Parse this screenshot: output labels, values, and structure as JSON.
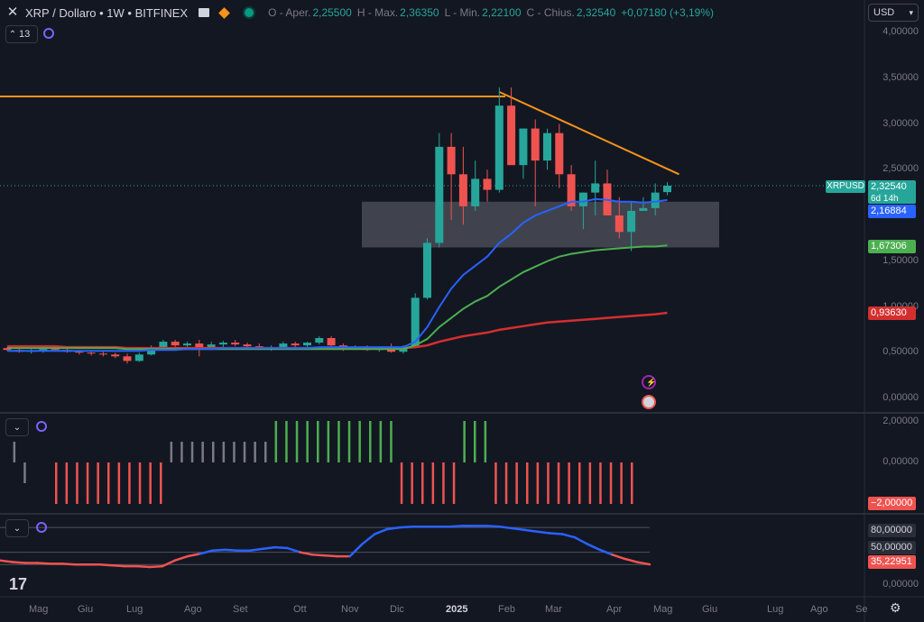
{
  "header": {
    "symbol": "XRP / Dollaro • 1W • BITFINEX",
    "open_label": "O - Aper.",
    "open_value": "2,25500",
    "high_label": "H - Max.",
    "high_value": "2,36350",
    "low_label": "L - Min.",
    "low_value": "2,22100",
    "close_label": "C - Chius.",
    "close_value": "2,32540",
    "change": "+0,07180 (+3,19%)"
  },
  "indicators_pill": {
    "count": "13"
  },
  "currency_selector": {
    "value": "USD"
  },
  "price_axis": [
    "4,00000",
    "3,50000",
    "3,00000",
    "2,50000",
    "1,50000",
    "1,00000",
    "0,50000",
    "0,00000"
  ],
  "osc_axis": [
    "2,00000",
    "0,00000"
  ],
  "rsi_axis": [
    "0,00000"
  ],
  "price_tags": {
    "symbol_tag": "XRPUSD",
    "last_price": "2,32540",
    "countdown": "6d 14h",
    "ema_blue": "2,16884",
    "ema_green": "1,67306",
    "ema_red": "0,93630",
    "osc_value": "−2,00000",
    "rsi_upper": "80,00000",
    "rsi_mid": "50,00000",
    "rsi_value": "35,22951"
  },
  "time_axis": [
    "Mag",
    "Giu",
    "Lug",
    "Ago",
    "Set",
    "Ott",
    "Nov",
    "Dic",
    "2025",
    "Feb",
    "Mar",
    "Apr",
    "Mag",
    "Giu",
    "Lug",
    "Ago",
    "Se"
  ],
  "colors": {
    "up": "#26a69a",
    "down": "#ef5350",
    "ema_blue": "#2962ff",
    "ema_green": "#4caf50",
    "ema_red": "#d32f2f",
    "trendline": "#f7931a",
    "background": "#131722"
  },
  "chart_data": {
    "type": "candlestick",
    "interval": "1W",
    "price_range": [
      0,
      4
    ],
    "candles_ohlc": [
      [
        0.55,
        0.56,
        0.52,
        0.53
      ],
      [
        0.53,
        0.55,
        0.5,
        0.51
      ],
      [
        0.51,
        0.54,
        0.49,
        0.52
      ],
      [
        0.52,
        0.55,
        0.5,
        0.54
      ],
      [
        0.54,
        0.56,
        0.52,
        0.53
      ],
      [
        0.53,
        0.55,
        0.5,
        0.51
      ],
      [
        0.51,
        0.53,
        0.48,
        0.5
      ],
      [
        0.5,
        0.52,
        0.47,
        0.49
      ],
      [
        0.49,
        0.51,
        0.46,
        0.48
      ],
      [
        0.48,
        0.5,
        0.44,
        0.46
      ],
      [
        0.46,
        0.49,
        0.38,
        0.41
      ],
      [
        0.41,
        0.5,
        0.4,
        0.48
      ],
      [
        0.48,
        0.58,
        0.47,
        0.56
      ],
      [
        0.56,
        0.64,
        0.54,
        0.62
      ],
      [
        0.62,
        0.64,
        0.55,
        0.58
      ],
      [
        0.58,
        0.62,
        0.56,
        0.6
      ],
      [
        0.6,
        0.64,
        0.46,
        0.56
      ],
      [
        0.56,
        0.62,
        0.54,
        0.59
      ],
      [
        0.59,
        0.63,
        0.55,
        0.61
      ],
      [
        0.61,
        0.64,
        0.57,
        0.59
      ],
      [
        0.59,
        0.61,
        0.55,
        0.57
      ],
      [
        0.57,
        0.6,
        0.53,
        0.55
      ],
      [
        0.55,
        0.58,
        0.52,
        0.56
      ],
      [
        0.56,
        0.62,
        0.55,
        0.6
      ],
      [
        0.6,
        0.62,
        0.56,
        0.58
      ],
      [
        0.58,
        0.62,
        0.56,
        0.61
      ],
      [
        0.61,
        0.68,
        0.59,
        0.66
      ],
      [
        0.66,
        0.68,
        0.57,
        0.58
      ],
      [
        0.58,
        0.6,
        0.52,
        0.54
      ],
      [
        0.54,
        0.58,
        0.53,
        0.56
      ],
      [
        0.56,
        0.58,
        0.52,
        0.53
      ],
      [
        0.53,
        0.56,
        0.51,
        0.55
      ],
      [
        0.55,
        0.6,
        0.5,
        0.51
      ],
      [
        0.51,
        0.58,
        0.49,
        0.56
      ],
      [
        0.56,
        1.15,
        0.55,
        1.1
      ],
      [
        1.1,
        1.75,
        1.08,
        1.7
      ],
      [
        1.7,
        2.9,
        1.65,
        2.75
      ],
      [
        2.75,
        2.9,
        1.95,
        2.45
      ],
      [
        2.45,
        2.75,
        1.9,
        2.1
      ],
      [
        2.1,
        2.6,
        2.05,
        2.4
      ],
      [
        2.4,
        2.5,
        2.15,
        2.28
      ],
      [
        2.28,
        3.4,
        2.25,
        3.2
      ],
      [
        3.2,
        3.4,
        2.65,
        2.55
      ],
      [
        2.55,
        2.95,
        2.4,
        2.95
      ],
      [
        2.95,
        3.05,
        2.1,
        2.6
      ],
      [
        2.6,
        2.95,
        2.5,
        2.9
      ],
      [
        2.9,
        3.0,
        2.3,
        2.45
      ],
      [
        2.45,
        2.55,
        2.05,
        2.1
      ],
      [
        2.1,
        2.25,
        1.85,
        2.25
      ],
      [
        2.25,
        2.6,
        2.0,
        2.35
      ],
      [
        2.35,
        2.5,
        2.0,
        2.0
      ],
      [
        2.0,
        2.2,
        1.75,
        1.82
      ],
      [
        1.82,
        2.15,
        1.61,
        2.05
      ],
      [
        2.05,
        2.2,
        2.05,
        2.08
      ],
      [
        2.08,
        2.35,
        2.0,
        2.25
      ],
      [
        2.255,
        2.3635,
        2.221,
        2.3254
      ]
    ],
    "ema_blue": [
      0.52,
      0.52,
      0.52,
      0.52,
      0.52,
      0.52,
      0.52,
      0.52,
      0.52,
      0.52,
      0.52,
      0.52,
      0.53,
      0.53,
      0.53,
      0.54,
      0.54,
      0.54,
      0.55,
      0.55,
      0.55,
      0.55,
      0.55,
      0.55,
      0.55,
      0.55,
      0.56,
      0.56,
      0.56,
      0.56,
      0.56,
      0.56,
      0.56,
      0.56,
      0.62,
      0.78,
      1.0,
      1.2,
      1.35,
      1.45,
      1.55,
      1.7,
      1.8,
      1.92,
      2.0,
      2.05,
      2.1,
      2.15,
      2.15,
      2.18,
      2.17,
      2.15,
      2.15,
      2.14,
      2.15,
      2.16884
    ],
    "ema_green": [
      0.55,
      0.55,
      0.55,
      0.55,
      0.55,
      0.55,
      0.55,
      0.55,
      0.55,
      0.55,
      0.54,
      0.54,
      0.54,
      0.54,
      0.54,
      0.54,
      0.54,
      0.54,
      0.54,
      0.54,
      0.54,
      0.54,
      0.54,
      0.54,
      0.54,
      0.54,
      0.54,
      0.54,
      0.54,
      0.54,
      0.54,
      0.54,
      0.54,
      0.54,
      0.58,
      0.65,
      0.78,
      0.88,
      0.98,
      1.06,
      1.12,
      1.22,
      1.3,
      1.38,
      1.44,
      1.5,
      1.55,
      1.58,
      1.6,
      1.62,
      1.63,
      1.64,
      1.65,
      1.66,
      1.66,
      1.67306
    ],
    "ema_red": [
      0.57,
      0.57,
      0.57,
      0.57,
      0.57,
      0.56,
      0.56,
      0.56,
      0.56,
      0.56,
      0.55,
      0.55,
      0.55,
      0.55,
      0.55,
      0.55,
      0.55,
      0.55,
      0.55,
      0.55,
      0.55,
      0.55,
      0.55,
      0.55,
      0.55,
      0.55,
      0.55,
      0.55,
      0.55,
      0.55,
      0.55,
      0.55,
      0.55,
      0.55,
      0.56,
      0.58,
      0.62,
      0.65,
      0.68,
      0.7,
      0.72,
      0.75,
      0.77,
      0.79,
      0.81,
      0.83,
      0.84,
      0.85,
      0.86,
      0.87,
      0.88,
      0.89,
      0.9,
      0.91,
      0.92,
      0.9363
    ],
    "resistance_level": 3.3,
    "support_zone": [
      1.65,
      2.15
    ],
    "trendline": [
      [
        41,
        3.35
      ],
      [
        55,
        2.45
      ]
    ],
    "oscillator_bars": [
      0,
      1,
      -1,
      0,
      0,
      -2,
      -2,
      -2,
      -2,
      -2,
      -2,
      -2,
      -2,
      -2,
      -2,
      -2,
      1,
      1,
      1,
      1,
      1,
      1,
      1,
      1,
      1,
      1,
      2,
      2,
      2,
      2,
      2,
      2,
      2,
      2,
      2,
      2,
      2,
      2,
      -2,
      -2,
      -2,
      -2,
      -2,
      -2,
      2,
      2,
      2,
      -2,
      -2,
      -2,
      -2,
      -2,
      -2,
      -2,
      -2,
      -2,
      -2,
      -2,
      -2,
      -2,
      -2
    ],
    "oscillator_range": [
      -2.2,
      2.2
    ],
    "rsi": [
      40,
      38,
      37,
      37,
      36,
      36,
      35,
      35,
      35,
      34,
      33,
      33,
      32,
      33,
      40,
      45,
      48,
      52,
      53,
      52,
      52,
      54,
      56,
      55,
      50,
      47,
      46,
      45,
      45,
      60,
      72,
      78,
      80,
      81,
      81,
      81,
      81,
      82,
      82,
      82,
      81,
      79,
      77,
      75,
      73,
      72,
      68,
      60,
      53,
      47,
      42,
      38,
      35.2
    ],
    "rsi_range": [
      20,
      90
    ],
    "rsi_levels": [
      80,
      50
    ]
  }
}
